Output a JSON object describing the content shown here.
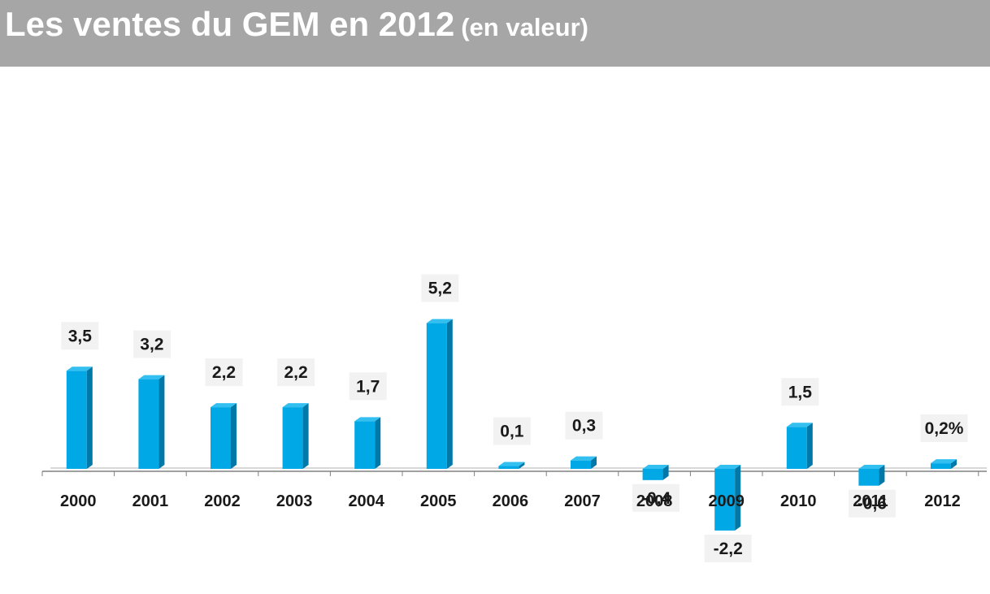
{
  "title": {
    "main": "Les ventes du GEM en 2012",
    "sub": "(en valeur)"
  },
  "colors": {
    "header_bg": "#a6a6a6",
    "bar_front": "#00a8e6",
    "bar_side": "#0078a8",
    "bar_top": "#33c0f0",
    "axis": "#808080"
  },
  "chart_data": {
    "type": "bar",
    "title": "Les ventes du GEM en 2012 (en valeur)",
    "categories": [
      "2000",
      "2001",
      "2002",
      "2003",
      "2004",
      "2005",
      "2006",
      "2007",
      "2008",
      "2009",
      "2010",
      "2011",
      "2012"
    ],
    "series": [
      {
        "values": [
          3.5,
          3.2,
          2.2,
          2.2,
          1.7,
          5.2,
          0.1,
          0.3,
          -0.4,
          -2.2,
          1.5,
          -0.6,
          0.2
        ]
      }
    ],
    "data_labels": [
      "3,5",
      "3,2",
      "2,2",
      "2,2",
      "1,7",
      "5,2",
      "0,1",
      "0,3",
      "-0,4",
      "-2,2",
      "1,5",
      "-0,6",
      "0,2%"
    ],
    "xlabel": "",
    "ylabel": "",
    "grid": false,
    "legend": "none"
  }
}
